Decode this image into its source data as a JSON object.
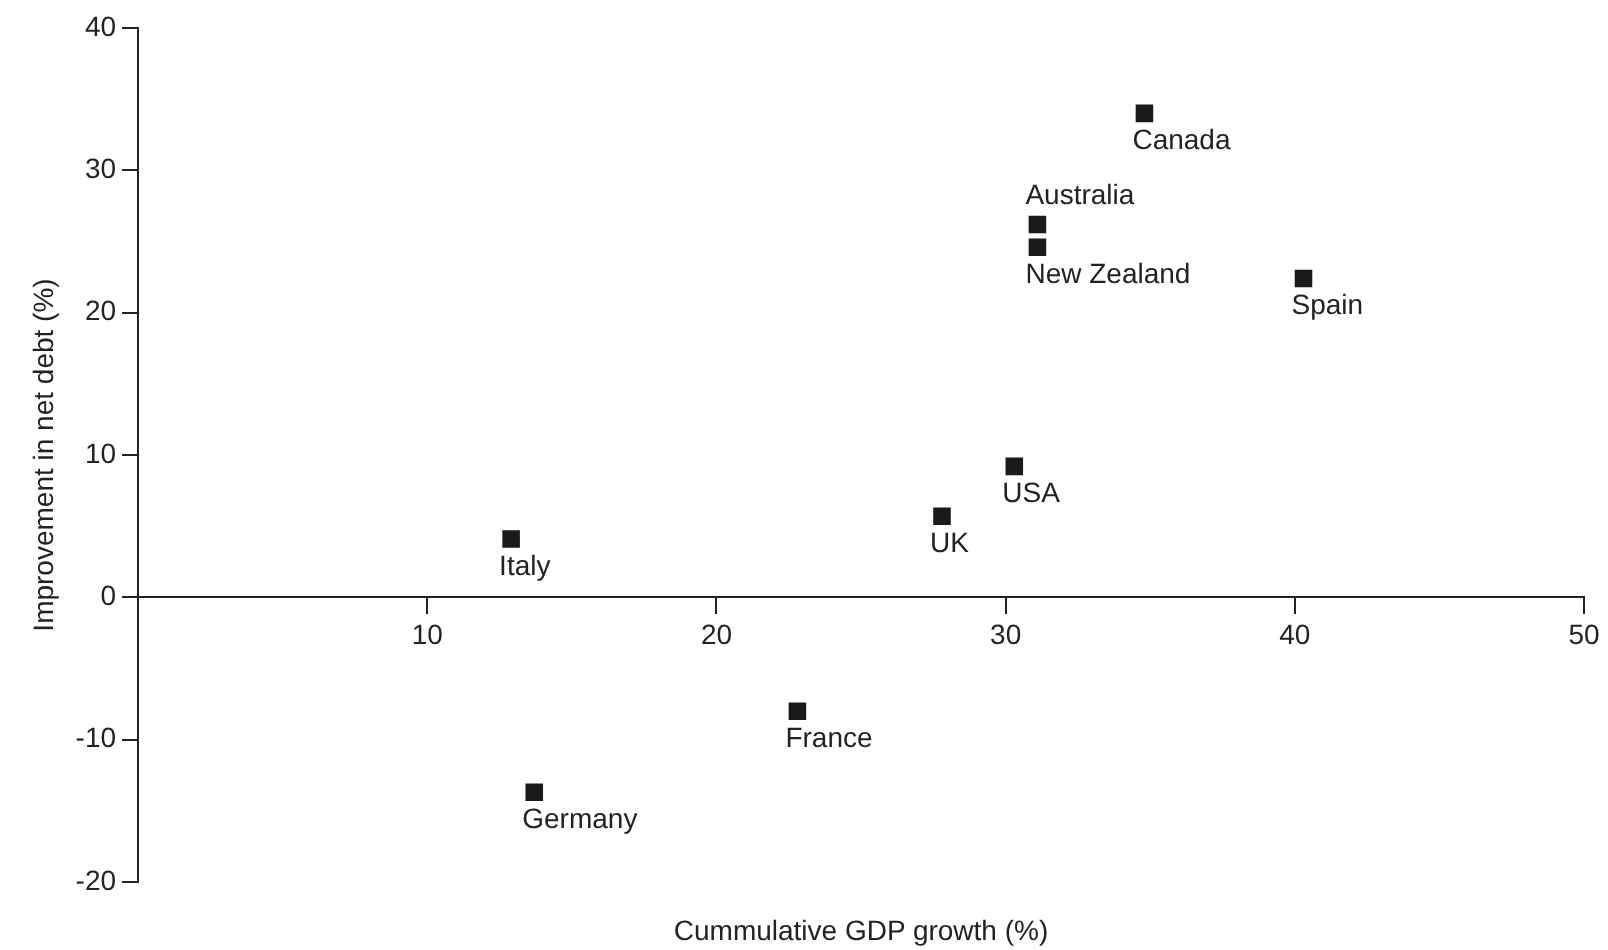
{
  "chart_data": {
    "type": "scatter",
    "xlabel": "Cummulative GDP growth (%)",
    "ylabel": "Improvement in net debt (%)",
    "x": [
      34.8,
      31.1,
      31.1,
      40.3,
      30.3,
      27.8,
      12.9,
      22.8,
      13.7
    ],
    "values": [
      34.0,
      26.2,
      24.6,
      22.4,
      9.2,
      5.7,
      4.1,
      -8.0,
      -13.7
    ],
    "color": "#1a1a1a",
    "marker": "square",
    "xlim": [
      0,
      50
    ],
    "xticks": [
      10,
      20,
      30,
      40,
      50
    ],
    "ylim": [
      -20,
      40
    ],
    "yticks": [
      -20,
      -10,
      0,
      10,
      20,
      30,
      40
    ],
    "grid": false,
    "legend": false,
    "annotations": [
      {
        "text": "Canada",
        "x": 34.8,
        "y": 34.0
      },
      {
        "text": "Australia",
        "x": 31.1,
        "y": 26.2
      },
      {
        "text": "New Zealand",
        "x": 31.1,
        "y": 24.6
      },
      {
        "text": "Spain",
        "x": 40.3,
        "y": 22.4
      },
      {
        "text": "USA",
        "x": 30.3,
        "y": 9.2
      },
      {
        "text": "UK",
        "x": 27.8,
        "y": 5.7
      },
      {
        "text": "Italy",
        "x": 12.9,
        "y": 4.1
      },
      {
        "text": "France",
        "x": 22.8,
        "y": -8.0
      },
      {
        "text": "Germany",
        "x": 13.7,
        "y": -13.7
      }
    ]
  }
}
